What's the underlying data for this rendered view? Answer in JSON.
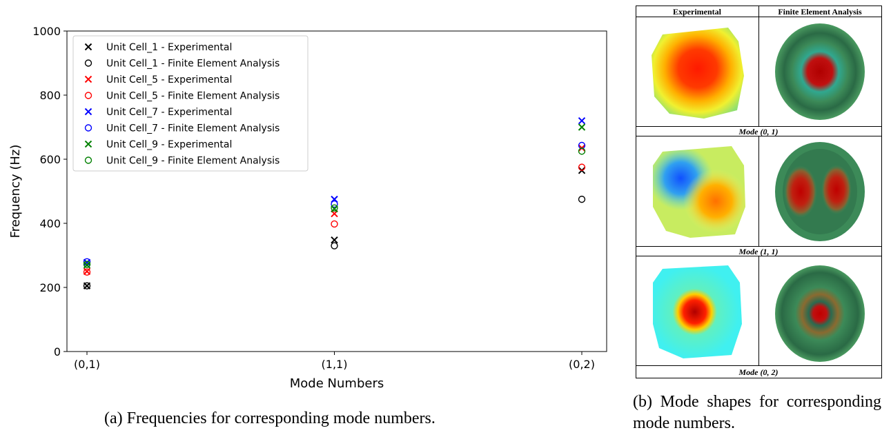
{
  "chart_data": {
    "type": "scatter",
    "xlabel": "Mode Numbers",
    "ylabel": "Frequency (Hz)",
    "categories": [
      "(0,1)",
      "(1,1)",
      "(0,2)"
    ],
    "ylim": [
      0,
      1000
    ],
    "yticks": [
      0,
      200,
      400,
      600,
      800,
      1000
    ],
    "legend": "upper left",
    "series": [
      {
        "name": "Unit Cell_1 - Experimental",
        "color": "#000000",
        "marker": "x",
        "values": [
          205,
          348,
          565
        ]
      },
      {
        "name": "Unit Cell_1 - Finite Element Analysis",
        "color": "#000000",
        "marker": "o",
        "values": [
          205,
          330,
          475
        ]
      },
      {
        "name": "Unit Cell_5 - Experimental",
        "color": "#ff0000",
        "marker": "x",
        "values": [
          250,
          430,
          635
        ]
      },
      {
        "name": "Unit Cell_5 - Finite Element Analysis",
        "color": "#ff0000",
        "marker": "o",
        "values": [
          248,
          398,
          575
        ]
      },
      {
        "name": "Unit Cell_7 - Experimental",
        "color": "#0000ff",
        "marker": "x",
        "values": [
          278,
          475,
          720
        ]
      },
      {
        "name": "Unit Cell_7 - Finite Element Analysis",
        "color": "#0000ff",
        "marker": "o",
        "values": [
          280,
          460,
          643
        ]
      },
      {
        "name": "Unit Cell_9 - Experimental",
        "color": "#008000",
        "marker": "x",
        "values": [
          270,
          445,
          700
        ]
      },
      {
        "name": "Unit Cell_9 - Finite Element Analysis",
        "color": "#008000",
        "marker": "o",
        "values": [
          272,
          448,
          625
        ]
      }
    ]
  },
  "panel_b": {
    "headers": [
      "Experimental",
      "Finite Element Analysis"
    ],
    "modes": [
      "Mode (0, 1)",
      "Mode (1, 1)",
      "Mode (0, 2)"
    ]
  },
  "captions": [
    "(a) Frequencies for corresponding mode numbers.",
    "(b) Mode shapes for corresponding mode numbers."
  ]
}
